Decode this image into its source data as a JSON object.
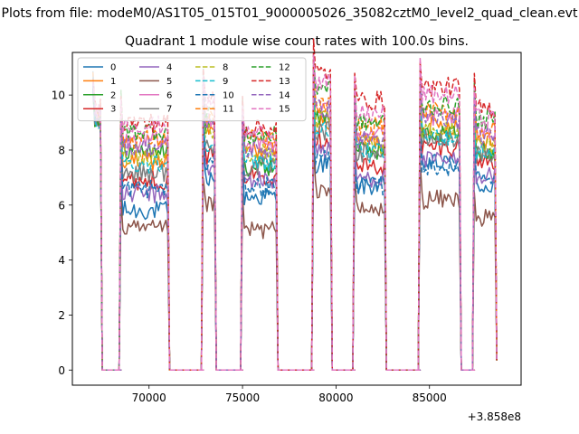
{
  "figure": {
    "suptitle": "Plots from file: modeM0/AS1T05_015T01_9000005026_35082cztM0_level2_quad_clean.evt"
  },
  "chart_data": {
    "type": "line",
    "title": "Quadrant 1 module wise count rates with 100.0s bins.",
    "xlabel": "",
    "ylabel": "",
    "x_offset_label": "+3.858e8",
    "xlim": [
      65900,
      89900
    ],
    "ylim": [
      -0.55,
      11.55
    ],
    "xticks": [
      70000,
      75000,
      80000,
      85000
    ],
    "xtick_labels": [
      "70000",
      "75000",
      "80000",
      "85000"
    ],
    "yticks": [
      0,
      2,
      4,
      6,
      8,
      10
    ],
    "ytick_labels": [
      "0",
      "2",
      "4",
      "6",
      "8",
      "10"
    ],
    "segments": [
      [
        67000,
        67400
      ],
      [
        68500,
        71000
      ],
      [
        72900,
        73500
      ],
      [
        75000,
        76800
      ],
      [
        78800,
        79700
      ],
      [
        81000,
        82600
      ],
      [
        84500,
        86600
      ],
      [
        87400,
        88500
      ]
    ],
    "gaps": [
      [
        67400,
        68500
      ],
      [
        71000,
        72900
      ],
      [
        73500,
        75000
      ],
      [
        76800,
        78800
      ],
      [
        79700,
        81000
      ],
      [
        82600,
        84500
      ],
      [
        86600,
        87400
      ]
    ],
    "series": [
      {
        "name": "0",
        "color": "#1f77b4",
        "dash": "solid",
        "levels": [
          9.4,
          5.8,
          7.0,
          6.3,
          7.5,
          6.7,
          7.5,
          6.7
        ]
      },
      {
        "name": "1",
        "color": "#ff7f0e",
        "dash": "solid",
        "levels": [
          9.2,
          7.6,
          8.7,
          8.0,
          9.0,
          8.3,
          8.9,
          8.4
        ]
      },
      {
        "name": "2",
        "color": "#2ca02c",
        "dash": "solid",
        "levels": [
          9.0,
          8.0,
          8.9,
          7.4,
          9.2,
          8.0,
          8.6,
          7.9
        ]
      },
      {
        "name": "3",
        "color": "#d62728",
        "dash": "solid",
        "levels": [
          9.3,
          6.9,
          7.8,
          7.1,
          8.4,
          7.4,
          8.1,
          7.6
        ]
      },
      {
        "name": "4",
        "color": "#9467bd",
        "dash": "solid",
        "levels": [
          9.0,
          6.4,
          7.3,
          6.9,
          8.0,
          7.0,
          7.6,
          7.1
        ]
      },
      {
        "name": "5",
        "color": "#8c564b",
        "dash": "solid",
        "levels": [
          9.1,
          5.1,
          6.0,
          5.1,
          6.6,
          5.8,
          6.2,
          5.5
        ]
      },
      {
        "name": "6",
        "color": "#e377c2",
        "dash": "solid",
        "levels": [
          9.2,
          8.3,
          9.2,
          8.2,
          9.4,
          8.7,
          9.2,
          8.6
        ]
      },
      {
        "name": "7",
        "color": "#7f7f7f",
        "dash": "solid",
        "levels": [
          9.2,
          7.2,
          8.1,
          7.4,
          8.7,
          7.9,
          8.4,
          7.8
        ]
      },
      {
        "name": "8",
        "color": "#bcbd22",
        "dash": "dashed",
        "levels": [
          9.1,
          7.8,
          8.7,
          7.9,
          9.1,
          8.2,
          8.7,
          8.1
        ]
      },
      {
        "name": "9",
        "color": "#17becf",
        "dash": "dashed",
        "levels": [
          9.0,
          7.5,
          8.3,
          7.6,
          8.7,
          7.9,
          8.5,
          7.9
        ]
      },
      {
        "name": "10",
        "color": "#1f77b4",
        "dash": "dashed",
        "levels": [
          9.3,
          6.6,
          7.5,
          6.7,
          7.7,
          6.7,
          7.4,
          7.1
        ]
      },
      {
        "name": "11",
        "color": "#ff7f0e",
        "dash": "dashed",
        "levels": [
          9.4,
          8.4,
          9.1,
          8.4,
          9.6,
          8.9,
          9.4,
          8.7
        ]
      },
      {
        "name": "12",
        "color": "#2ca02c",
        "dash": "dashed",
        "levels": [
          9.2,
          8.7,
          9.5,
          8.5,
          10.3,
          9.0,
          9.6,
          9.1
        ]
      },
      {
        "name": "13",
        "color": "#d62728",
        "dash": "dashed",
        "levels": [
          9.6,
          9.0,
          9.9,
          8.8,
          10.8,
          9.8,
          10.3,
          9.5
        ]
      },
      {
        "name": "14",
        "color": "#9467bd",
        "dash": "dashed",
        "levels": [
          9.3,
          8.1,
          9.0,
          8.0,
          9.5,
          8.4,
          9.1,
          8.5
        ]
      },
      {
        "name": "15",
        "color": "#e377c2",
        "dash": "dashed",
        "levels": [
          9.5,
          8.9,
          9.7,
          8.6,
          10.4,
          9.3,
          10.0,
          9.2
        ]
      }
    ],
    "legend": {
      "placement": "upper-left",
      "columns": 4
    },
    "grid": false
  }
}
